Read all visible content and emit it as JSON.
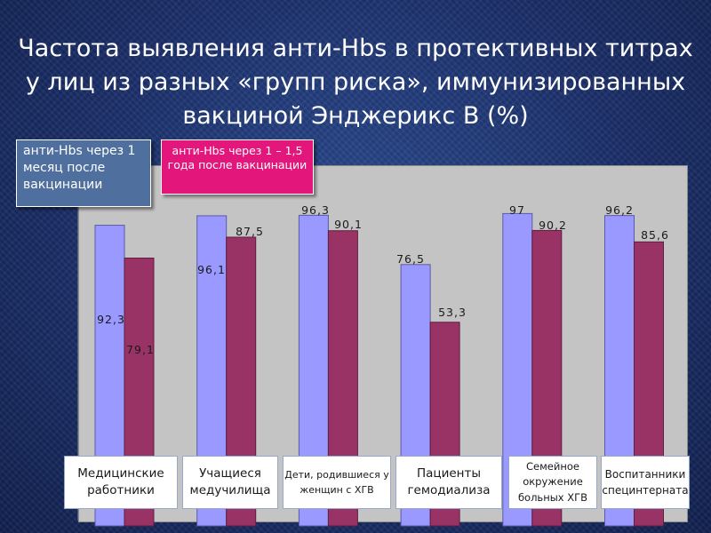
{
  "title": "Частота выявления анти-Hbs в протективных титрах у лиц из разных «групп риска», иммунизированных вакциной Энджерикс В (%)",
  "callouts": {
    "first": "анти-Hbs через 1 месяц после вакцинации",
    "second": "анти-Hbs через 1 – 1,5 года после вакцинации"
  },
  "colors": {
    "series1": "#9999ff",
    "series2": "#993366",
    "plot_bg": "#c4c4c4",
    "callout_blue": "#4f6f9f",
    "callout_pink": "#e2167b"
  },
  "chart_data": {
    "type": "bar",
    "title": "Частота выявления анти-Hbs в протективных титрах у лиц из разных «групп риска», иммунизированных вакциной Энджерикс В (%)",
    "categories": [
      "Медицинские работники",
      "Учащиеся медучилища",
      "Дети, родившиеся у женщин с ХГВ",
      "Пациенты гемодиализа",
      "Семейное окружение больных ХГВ",
      "Воспитанники специнтерната"
    ],
    "series": [
      {
        "name": "анти-Hbs через 1 месяц после вакцинации",
        "values": [
          92.3,
          96.1,
          96.3,
          76.5,
          97,
          96.2
        ],
        "labels": [
          "92,3",
          "96,1",
          "96,3",
          "76,5",
          "97",
          "96,2"
        ]
      },
      {
        "name": "анти-Hbs через 1 – 1,5 года после вакцинации",
        "values": [
          79.1,
          87.5,
          90.1,
          53.3,
          90.2,
          85.6
        ],
        "labels": [
          "79,1",
          "87,5",
          "90,1",
          "53,3",
          "90,2",
          "85,6"
        ]
      }
    ],
    "ylim": [
      0,
      100
    ],
    "grid": false,
    "legend": "top-left"
  }
}
